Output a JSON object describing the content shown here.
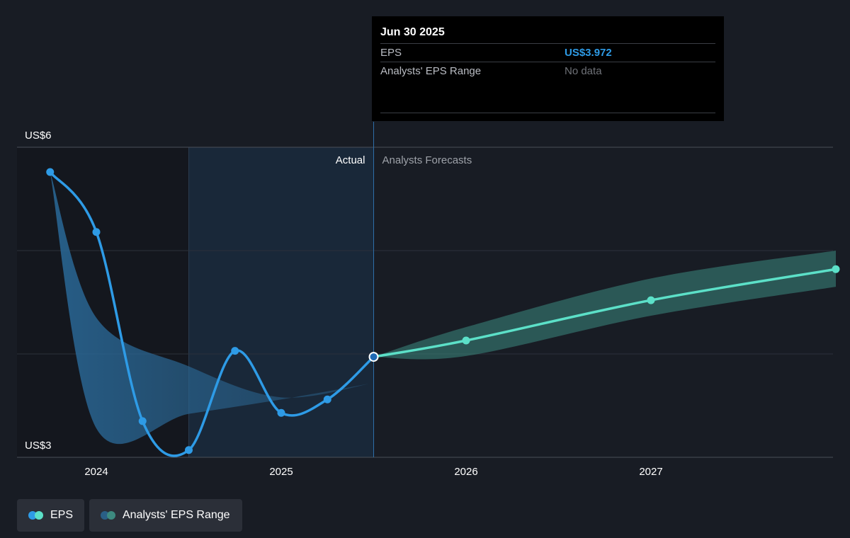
{
  "tooltip": {
    "date": "Jun 30 2025",
    "rows": [
      {
        "label": "EPS",
        "value": "US$3.972"
      },
      {
        "label": "Analysts' EPS Range",
        "value": "No data"
      }
    ]
  },
  "legend": {
    "items": [
      {
        "label": "EPS",
        "colors": [
          "#2e9be6",
          "#5ce0c8"
        ]
      },
      {
        "label": "Analysts' EPS Range",
        "colors": [
          "#2a5f86",
          "#3d8a80"
        ]
      }
    ]
  },
  "chart_data": {
    "type": "line",
    "x_ticks": [
      2024,
      2025,
      2026,
      2027
    ],
    "y_tick_labels": [
      {
        "value": 6,
        "label": "US$6"
      },
      {
        "value": 3,
        "label": "US$3"
      }
    ],
    "ylim": [
      3,
      6
    ],
    "xlim": [
      2023.5,
      2028.0
    ],
    "region_labels": {
      "actual": "Actual",
      "forecast": "Analysts Forecasts"
    },
    "split_date": 2025.5,
    "colors": {
      "actual": "#2e9be6",
      "forecast": "#5ce0c8",
      "range_past": "#2a5f86",
      "range_future": "#3d8a80"
    },
    "series": [
      {
        "name": "EPS",
        "segment": "actual",
        "x": [
          2023.75,
          2024.0,
          2024.25,
          2024.5,
          2024.75,
          2025.0,
          2025.25,
          2025.5
        ],
        "values": [
          5.76,
          5.18,
          3.35,
          3.07,
          4.03,
          3.43,
          3.56,
          3.972
        ]
      },
      {
        "name": "EPS",
        "segment": "forecast",
        "x": [
          2025.5,
          2026.0,
          2027.0,
          2028.0
        ],
        "values": [
          3.972,
          4.13,
          4.52,
          4.82
        ]
      }
    ],
    "range": [
      {
        "segment": "past",
        "x": [
          2023.75,
          2024.0,
          2024.5,
          2025.0,
          2025.5
        ],
        "low": [
          5.76,
          3.28,
          3.42,
          3.56,
          3.72
        ],
        "high": [
          5.76,
          4.35,
          3.88,
          3.58,
          3.72
        ]
      },
      {
        "segment": "forecast",
        "x": [
          2025.5,
          2026.0,
          2027.0,
          2028.0
        ],
        "low": [
          3.972,
          3.98,
          4.37,
          4.65
        ],
        "high": [
          3.972,
          4.26,
          4.73,
          5.0
        ]
      }
    ]
  }
}
